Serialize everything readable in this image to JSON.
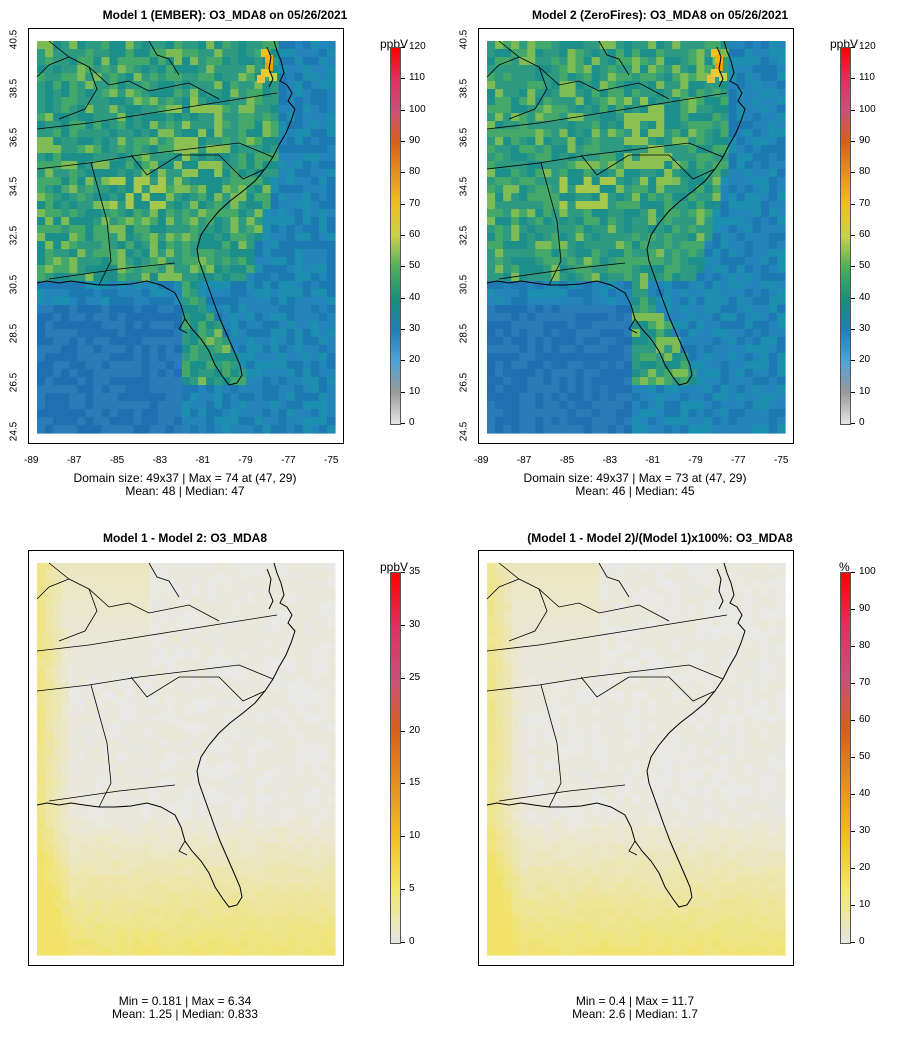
{
  "panels": [
    {
      "id": "p1",
      "title": "Model 1 (EMBER): O3_MDA8 on 05/26/2021",
      "unit": "ppbV",
      "colorbar_ticks": [
        "0",
        "10",
        "20",
        "30",
        "40",
        "50",
        "60",
        "70",
        "80",
        "90",
        "100",
        "110",
        "120"
      ],
      "colorbar_max": 120,
      "map_kind": "concentration",
      "hotspot_level": 74,
      "x_ticks": [
        "-89",
        "-87",
        "-85",
        "-83",
        "-81",
        "-79",
        "-77",
        "-75"
      ],
      "y_ticks": [
        "24.5",
        "26.5",
        "28.5",
        "30.5",
        "32.5",
        "34.5",
        "36.5",
        "38.5",
        "40.5"
      ],
      "caption_line1": "Domain size: 49x37 | Max = 74 at (47, 29)",
      "caption_line2": "Mean: 48 |  Median: 47"
    },
    {
      "id": "p2",
      "title": "Model 2 (ZeroFires): O3_MDA8 on 05/26/2021",
      "unit": "ppbV",
      "colorbar_ticks": [
        "0",
        "10",
        "20",
        "30",
        "40",
        "50",
        "60",
        "70",
        "80",
        "90",
        "100",
        "110",
        "120"
      ],
      "colorbar_max": 120,
      "map_kind": "concentration",
      "hotspot_level": 73,
      "x_ticks": [
        "-89",
        "-87",
        "-85",
        "-83",
        "-81",
        "-79",
        "-77",
        "-75"
      ],
      "y_ticks": [
        "24.5",
        "26.5",
        "28.5",
        "30.5",
        "32.5",
        "34.5",
        "36.5",
        "38.5",
        "40.5"
      ],
      "caption_line1": "Domain size: 49x37 | Max = 73 at (47, 29)",
      "caption_line2": "Mean: 46 |  Median: 45"
    },
    {
      "id": "p3",
      "title": "Model 1 - Model 2: O3_MDA8",
      "unit": "ppbV",
      "colorbar_ticks": [
        "0",
        "5",
        "10",
        "15",
        "20",
        "25",
        "30",
        "35"
      ],
      "colorbar_max": 35,
      "map_kind": "difference",
      "caption_line1": "Min = 0.181 | Max = 6.34",
      "caption_line2": "Mean: 1.25 |  Median: 0.833"
    },
    {
      "id": "p4",
      "title": "(Model 1 - Model 2)/(Model 1)x100%: O3_MDA8",
      "unit": "%",
      "colorbar_ticks": [
        "0",
        "10",
        "20",
        "30",
        "40",
        "50",
        "60",
        "70",
        "80",
        "90",
        "100"
      ],
      "colorbar_max": 100,
      "map_kind": "difference",
      "caption_line1": "Min = 0.4 | Max = 11.7",
      "caption_line2": "Mean: 2.6 |  Median: 1.7"
    }
  ],
  "colors": {
    "conc_gradient": [
      "#e6e6e6",
      "#9a9a9a",
      "#4ea3d8",
      "#1f7fb6",
      "#18907a",
      "#4eae5a",
      "#c8d24a",
      "#f0c020",
      "#e49020",
      "#d8601a",
      "#c9507a",
      "#e03060",
      "#ff0000"
    ],
    "diff_gradient": [
      "#e6e6e6",
      "#f2e86a",
      "#f0c020",
      "#e49020",
      "#d8601a",
      "#c9507a",
      "#e03060",
      "#ff0000"
    ],
    "ocean_base": "#1f7fb6",
    "land_base": "#2e9a88",
    "diff_base": "#e8e8e8",
    "diff_yellow": "#f1e36a",
    "outline": "#000000"
  }
}
